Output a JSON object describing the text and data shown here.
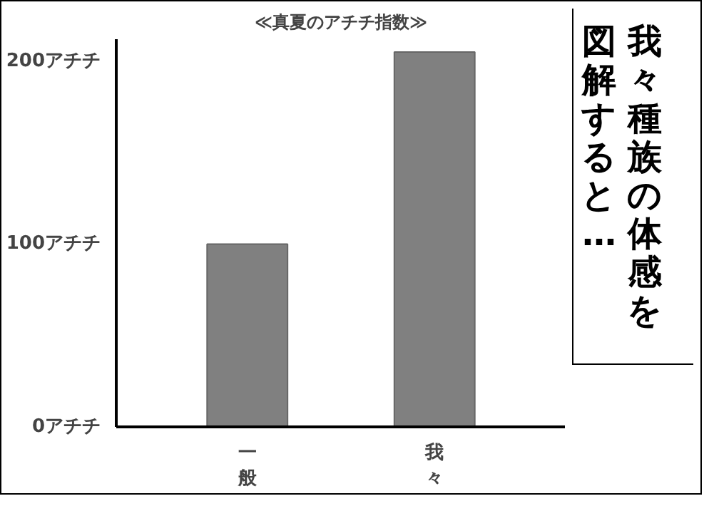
{
  "chart_data": {
    "type": "bar",
    "title": "≪真夏のアチチ指数≫",
    "categories": [
      "一般",
      "我々"
    ],
    "values": [
      100,
      205
    ],
    "color": "#808080",
    "ylim": [
      0,
      212
    ],
    "yticks": [
      {
        "value": 0,
        "label": "0アチチ"
      },
      {
        "value": 100,
        "label": "100アチチ"
      },
      {
        "value": 200,
        "label": "200アチチ"
      }
    ],
    "grid": false,
    "annotations": [
      "我々種族の体感を",
      "図解すると…"
    ]
  }
}
